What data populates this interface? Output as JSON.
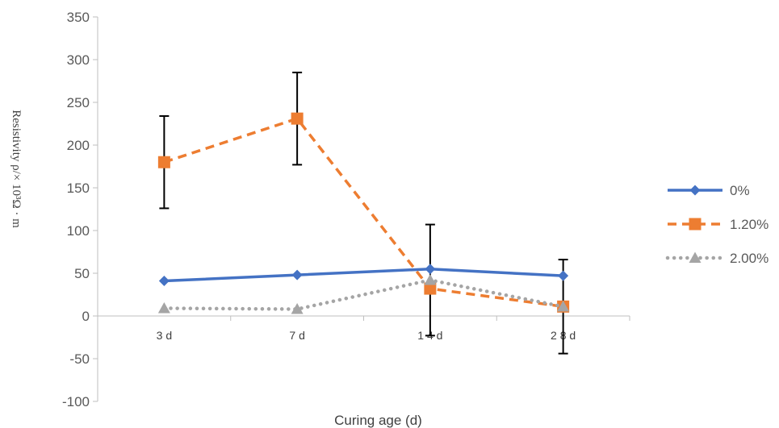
{
  "chart_data": {
    "type": "line",
    "title": "",
    "xlabel": "Curing age (d)",
    "ylabel": "Resistivity ρ/× 10³Ω · m",
    "categories": [
      "3 d",
      "7 d",
      "1 4 d",
      "2 8 d"
    ],
    "ylim": [
      -100,
      350
    ],
    "yticks": [
      -100,
      -50,
      0,
      50,
      100,
      150,
      200,
      250,
      300,
      350
    ],
    "grid": false,
    "legend_position": "right",
    "series": [
      {
        "name": "0%",
        "values": [
          41,
          48,
          55,
          47
        ],
        "color": "#4472C4",
        "dash": "solid",
        "marker": "diamond",
        "error": [
          null,
          null,
          null,
          null
        ]
      },
      {
        "name": "1.20%",
        "values": [
          180,
          231,
          32,
          11
        ],
        "color": "#ED7D31",
        "dash": "dashed",
        "marker": "square",
        "error": [
          54,
          54,
          null,
          null
        ]
      },
      {
        "name": "2.00%",
        "values": [
          9,
          8,
          42,
          11
        ],
        "color": "#A5A5A5",
        "dash": "dotted",
        "marker": "triangle",
        "error": [
          null,
          null,
          65,
          55
        ]
      }
    ]
  }
}
